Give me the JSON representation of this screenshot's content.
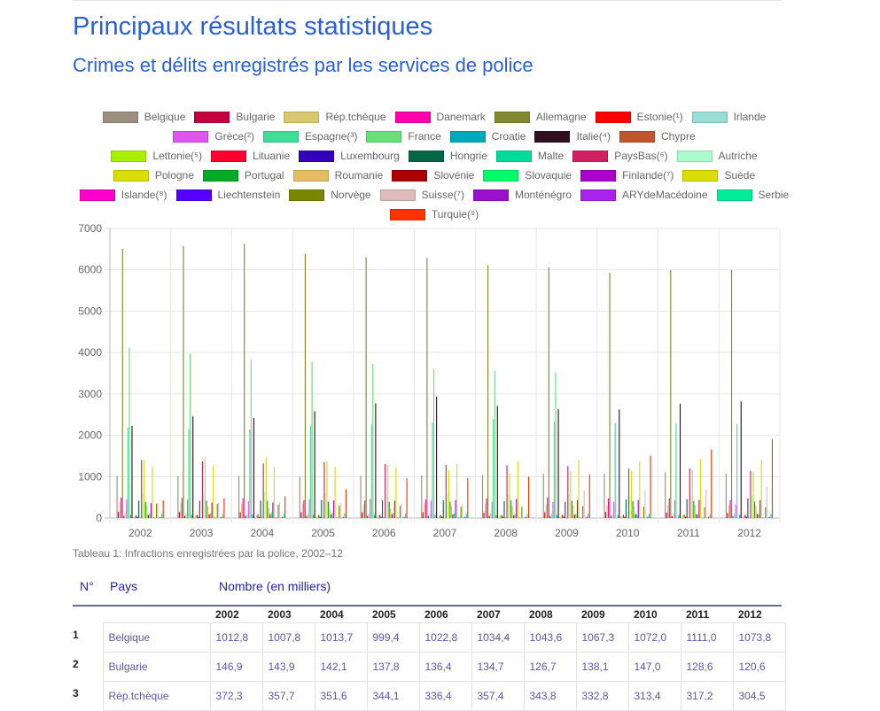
{
  "page": {
    "title": "Principaux résultats statistiques",
    "subtitle": "Crimes et délits enregistrés par les services de police",
    "caption": "Tableau 1: Infractions enregistrées par la police, 2002–12"
  },
  "table": {
    "col_no": "N°",
    "col_country": "Pays",
    "col_number": "Nombre (en milliers)",
    "years": [
      "2002",
      "2003",
      "2004",
      "2005",
      "2006",
      "2007",
      "2008",
      "2009",
      "2010",
      "2011",
      "2012"
    ],
    "rows": [
      {
        "no": "1",
        "country": "Belgique",
        "values": [
          "1012,8",
          "1007,8",
          "1013,7",
          "999,4",
          "1022,8",
          "1034,4",
          "1043,6",
          "1067,3",
          "1072,0",
          "1111,0",
          "1073,8"
        ]
      },
      {
        "no": "2",
        "country": "Bulgarie",
        "values": [
          "146,9",
          "143,9",
          "142,1",
          "137,8",
          "136,4",
          "134,7",
          "126,7",
          "138,1",
          "147,0",
          "128,6",
          "120,6"
        ]
      },
      {
        "no": "3",
        "country": "Rép.tchèque",
        "values": [
          "372,3",
          "357,7",
          "351,6",
          "344,1",
          "336,4",
          "357,4",
          "343,8",
          "332,8",
          "313,4",
          "317,2",
          "304,5"
        ]
      }
    ]
  },
  "chart_data": {
    "type": "bar",
    "categories": [
      "2002",
      "2003",
      "2004",
      "2005",
      "2006",
      "2007",
      "2008",
      "2009",
      "2010",
      "2011",
      "2012"
    ],
    "ylim": [
      0,
      7000
    ],
    "yticks": [
      "0",
      "1000",
      "2000",
      "3000",
      "4000",
      "5000",
      "6000",
      "7000"
    ],
    "grid": true,
    "legend_position": "top",
    "series": [
      {
        "name": "Belgique",
        "color": "#999080",
        "values": [
          1013,
          1008,
          1014,
          999,
          1023,
          1034,
          1044,
          1067,
          1072,
          1111,
          1074
        ]
      },
      {
        "name": "Bulgarie",
        "color": "#c40040",
        "values": [
          147,
          144,
          142,
          138,
          136,
          135,
          127,
          138,
          147,
          129,
          121
        ]
      },
      {
        "name": "Rép.tchèque",
        "color": "#d9c870",
        "values": [
          372,
          358,
          352,
          344,
          336,
          357,
          344,
          333,
          313,
          317,
          305
        ]
      },
      {
        "name": "Danemark",
        "color": "#ff00aa",
        "values": [
          492,
          486,
          474,
          432,
          424,
          445,
          473,
          491,
          472,
          473,
          431
        ]
      },
      {
        "name": "Allemagne",
        "color": "#808830",
        "values": [
          6507,
          6572,
          6633,
          6392,
          6304,
          6285,
          6114,
          6055,
          5933,
          5991,
          5998
        ]
      },
      {
        "name": "Estonie(¹)",
        "color": "#ff0000",
        "values": [
          53,
          52,
          53,
          51,
          51,
          50,
          51,
          48,
          48,
          44,
          41
        ]
      },
      {
        "name": "Irlande",
        "color": "#99ddd4",
        "values": [
          106,
          103,
          99,
          102,
          103,
          110,
          107,
          109,
          102,
          100,
          99
        ]
      },
      {
        "name": "Grèce(²)",
        "color": "#e055ee",
        "values": [
          442,
          442,
          405,
          456,
          463,
          423,
          386,
          387,
          387,
          431,
          326
        ]
      },
      {
        "name": "Espagne(³)",
        "color": "#40dd99",
        "values": [
          2184,
          2144,
          2141,
          2230,
          2267,
          2309,
          2390,
          2338,
          2298,
          2285,
          2269
        ]
      },
      {
        "name": "France",
        "color": "#66e077",
        "values": [
          4114,
          3975,
          3825,
          3776,
          3726,
          3589,
          3558,
          3522,
          0,
          0,
          0
        ]
      },
      {
        "name": "Croatie",
        "color": "#00aabb",
        "values": [
          77,
          80,
          85,
          79,
          76,
          71,
          72,
          74,
          73,
          75,
          80
        ]
      },
      {
        "name": "Italie(⁴)",
        "color": "#301020",
        "values": [
          2232,
          2457,
          2418,
          2579,
          2771,
          2933,
          2710,
          2630,
          2622,
          2764,
          2819
        ]
      },
      {
        "name": "Chypre",
        "color": "#c05530",
        "values": [
          5,
          6,
          7,
          8,
          8,
          7,
          7,
          8,
          8,
          7,
          6
        ]
      },
      {
        "name": "Lettonie(⁵)",
        "color": "#aaee00",
        "values": [
          49,
          52,
          61,
          52,
          62,
          56,
          55,
          51,
          50,
          54,
          50
        ]
      },
      {
        "name": "Lituanie",
        "color": "#ff0030",
        "values": [
          73,
          78,
          84,
          82,
          75,
          75,
          74,
          79,
          77,
          80,
          77
        ]
      },
      {
        "name": "Luxembourg",
        "color": "#3300bb",
        "values": [
          26,
          27,
          25,
          27,
          28,
          31,
          29,
          31,
          30,
          30,
          31
        ]
      },
      {
        "name": "Hongrie",
        "color": "#006644",
        "values": [
          421,
          413,
          419,
          436,
          426,
          426,
          408,
          394,
          447,
          451,
          473
        ]
      },
      {
        "name": "Malte",
        "color": "#00dd99",
        "values": [
          17,
          17,
          17,
          17,
          17,
          15,
          14,
          13,
          13,
          13,
          13
        ]
      },
      {
        "name": "PaysBas(⁶)",
        "color": "#d02060",
        "values": [
          1402,
          1369,
          1319,
          1348,
          1305,
          1282,
          1275,
          1254,
          1195,
          1195,
          1138
        ]
      },
      {
        "name": "Autriche",
        "color": "#aaffcc",
        "values": [
          592,
          643,
          644,
          605,
          589,
          594,
          572,
          591,
          535,
          540,
          548
        ]
      },
      {
        "name": "Pologne",
        "color": "#d9dd00",
        "values": [
          1404,
          1467,
          1461,
          1380,
          1287,
          1153,
          1082,
          1129,
          1139,
          1159,
          1119
        ]
      },
      {
        "name": "Portugal",
        "color": "#00aa22",
        "values": [
          392,
          417,
          417,
          392,
          391,
          392,
          421,
          417,
          411,
          408,
          397
        ]
      },
      {
        "name": "Roumanie",
        "color": "#e8bb66",
        "values": [
          300,
          280,
          236,
          208,
          232,
          282,
          290,
          297,
          281,
          306,
          292
        ]
      },
      {
        "name": "Slovénie",
        "color": "#aa0000",
        "values": [
          78,
          87,
          87,
          85,
          90,
          88,
          65,
          80,
          90,
          90,
          97
        ]
      },
      {
        "name": "Slovaquie",
        "color": "#00ff66",
        "values": [
          107,
          112,
          131,
          123,
          116,
          111,
          104,
          102,
          95,
          92,
          90
        ]
      },
      {
        "name": "Finlande(⁷)",
        "color": "#aa00cc",
        "values": [
          359,
          376,
          377,
          423,
          417,
          433,
          459,
          432,
          431,
          433,
          432
        ]
      },
      {
        "name": "Suède",
        "color": "#d9dd00",
        "values": [
          1235,
          1256,
          1236,
          1241,
          1225,
          1306,
          1377,
          1406,
          1370,
          1417,
          1403
        ]
      },
      {
        "name": "Islande(⁸)",
        "color": "#ff00cc",
        "values": [
          17,
          16,
          15,
          14,
          14,
          12,
          11,
          13,
          12,
          11,
          12
        ]
      },
      {
        "name": "Liechtenstein",
        "color": "#5500ff",
        "values": [
          3,
          3,
          3,
          3,
          3,
          2,
          2,
          2,
          2,
          2,
          2
        ]
      },
      {
        "name": "Norvège",
        "color": "#778800",
        "values": [
          346,
          345,
          319,
          296,
          292,
          272,
          273,
          289,
          272,
          263,
          264
        ]
      },
      {
        "name": "Suisse(⁷)",
        "color": "#e0bbbb",
        "values": [
          360,
          374,
          381,
          352,
          338,
          334,
          0,
          677,
          656,
          693,
          750
        ]
      },
      {
        "name": "Monténégro",
        "color": "#9911cc",
        "values": [
          10,
          10,
          9,
          8,
          7,
          7,
          8,
          8,
          7,
          6,
          6
        ]
      },
      {
        "name": "ARYdeMacédoine",
        "color": "#aa22ee",
        "values": [
          23,
          25,
          26,
          27,
          27,
          29,
          27,
          32,
          32,
          30,
          29
        ]
      },
      {
        "name": "Serbie",
        "color": "#00ee99",
        "values": [
          100,
          101,
          104,
          110,
          111,
          103,
          102,
          103,
          99,
          97,
          97
        ]
      },
      {
        "name": "Turquie(⁹)",
        "color": "#ff3300",
        "values": [
          423,
          474,
          529,
          694,
          957,
          966,
          998,
          1055,
          1506,
          1657,
          1898
        ]
      }
    ]
  }
}
